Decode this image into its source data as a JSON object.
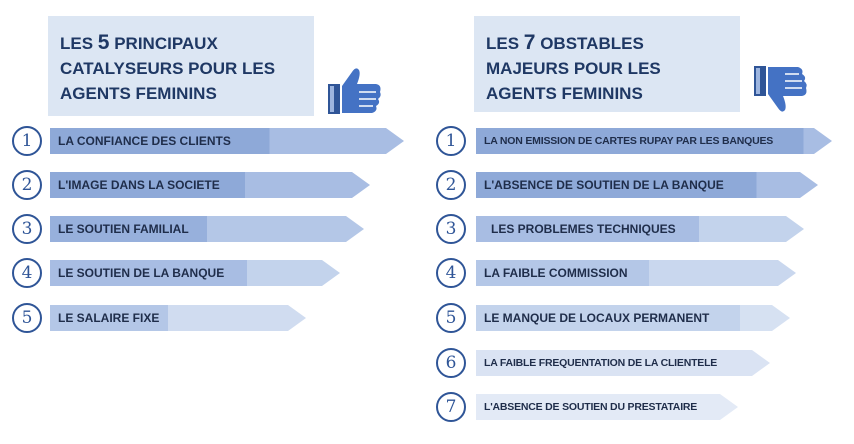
{
  "left": {
    "title": {
      "line1_a": "LES ",
      "num": "5",
      "line1_b": " PRINCIPAUX",
      "line2": "CATALYSEURS POUR LES",
      "line3": "AGENTS FEMININS"
    },
    "icon": "thumbs-up-icon",
    "items": [
      {
        "n": "1",
        "label": "LA CONFIANCE DES CLIENTS"
      },
      {
        "n": "2",
        "label": "L'IMAGE DANS LA SOCIETE"
      },
      {
        "n": "3",
        "label": "LE SOUTIEN FAMILIAL"
      },
      {
        "n": "4",
        "label": "LE SOUTIEN DE LA BANQUE"
      },
      {
        "n": "5",
        "label": "LE SALAIRE FIXE"
      }
    ]
  },
  "right": {
    "title": {
      "line1_a": "LES ",
      "num": "7",
      "line1_b": " OBSTABLES",
      "line2": "MAJEURS POUR LES",
      "line3": "AGENTS FEMININS"
    },
    "icon": "thumbs-down-icon",
    "items": [
      {
        "n": "1",
        "label": "LA NON EMISSION DE CARTES RUPAY PAR LES BANQUES"
      },
      {
        "n": "2",
        "label": "L'ABSENCE DE SOUTIEN DE LA BANQUE"
      },
      {
        "n": "3",
        "label": "LES PROBLEMES TECHNIQUES"
      },
      {
        "n": "4",
        "label": "LA FAIBLE COMMISSION"
      },
      {
        "n": "5",
        "label": "LE MANQUE DE LOCAUX PERMANENT"
      },
      {
        "n": "6",
        "label": "LA FAIBLE FREQUENTATION DE LA CLIENTELE"
      },
      {
        "n": "7",
        "label": "L'ABSENCE DE SOUTIEN DU PRESTATAIRE"
      }
    ]
  },
  "colors": {
    "dark": "#8ea9d8",
    "light": "#dae3f3",
    "text": "#1f3864"
  }
}
